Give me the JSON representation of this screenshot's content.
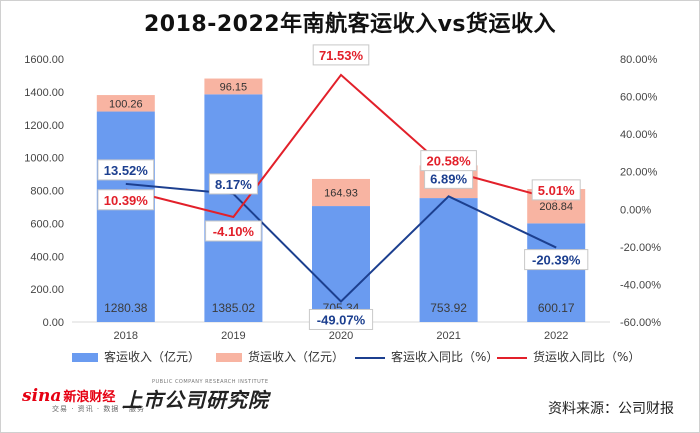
{
  "title": "2018-2022年南航客运收入vs货运收入",
  "chart_data": {
    "type": "bar",
    "stacked": true,
    "categories": [
      "2018",
      "2019",
      "2020",
      "2021",
      "2022"
    ],
    "series": [
      {
        "name": "客运收入（亿元）",
        "kind": "bar",
        "axis": "left",
        "color": "#6a9bf0",
        "values": [
          1280.38,
          1385.02,
          705.34,
          753.92,
          600.17
        ],
        "labels": [
          "1280.38",
          "1385.02",
          "705.34",
          "753.92",
          "600.17"
        ]
      },
      {
        "name": "货运收入（亿元）",
        "kind": "bar",
        "axis": "left",
        "color": "#f8b4a2",
        "values": [
          100.26,
          96.15,
          164.93,
          198.87,
          208.84
        ],
        "labels": [
          "100.26",
          "96.15",
          "164.93",
          "198.87",
          "208.84"
        ]
      },
      {
        "name": "客运收入同比（%）",
        "kind": "line",
        "axis": "right",
        "color": "#1c3f8f",
        "values": [
          13.52,
          8.17,
          -49.07,
          6.89,
          -20.39
        ],
        "labels": [
          "13.52%",
          "8.17%",
          "-49.07%",
          "6.89%",
          "-20.39%"
        ]
      },
      {
        "name": "货运收入同比（%）",
        "kind": "line",
        "axis": "right",
        "color": "#e2202a",
        "values": [
          10.39,
          -4.1,
          71.53,
          20.58,
          5.01
        ],
        "labels": [
          "10.39%",
          "-4.10%",
          "71.53%",
          "20.58%",
          "5.01%"
        ]
      }
    ],
    "y_left": {
      "min": 0,
      "max": 1600,
      "step": 200,
      "ticks": [
        "0.00",
        "200.00",
        "400.00",
        "600.00",
        "800.00",
        "1000.00",
        "1200.00",
        "1400.00",
        "1600.00"
      ]
    },
    "y_right": {
      "min": -60,
      "max": 80,
      "step": 20,
      "ticks": [
        "-60.00%",
        "-40.00%",
        "-20.00%",
        "0.00%",
        "20.00%",
        "40.00%",
        "60.00%",
        "80.00%"
      ]
    },
    "grid": false,
    "legend": "bottom"
  },
  "footer": {
    "sina_brand": "sina",
    "sina_name": "新浪财经",
    "sina_sub": "交易 · 资讯 · 数据 · 服务",
    "institute_name": "上市公司研究院",
    "institute_en": "PUBLIC COMPANY RESEARCH INSTITUTE",
    "source": "资料来源：公司财报"
  }
}
